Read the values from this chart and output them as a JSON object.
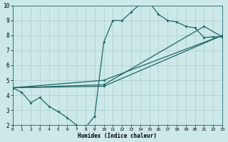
{
  "xlabel": "Humidex (Indice chaleur)",
  "xlim": [
    0,
    23
  ],
  "ylim": [
    2,
    10
  ],
  "xticks": [
    0,
    1,
    2,
    3,
    4,
    5,
    6,
    7,
    8,
    9,
    10,
    11,
    12,
    13,
    14,
    15,
    16,
    17,
    18,
    19,
    20,
    21,
    22,
    23
  ],
  "yticks": [
    2,
    3,
    4,
    5,
    6,
    7,
    8,
    9,
    10
  ],
  "background_color": "#cce8e8",
  "grid_color": "#aacece",
  "line_color": "#226666",
  "line1_x": [
    0,
    1,
    2,
    3,
    4,
    5,
    6,
    7,
    8,
    9,
    10,
    11,
    12,
    13,
    14,
    15,
    16,
    17,
    18,
    19,
    20,
    21,
    22,
    23
  ],
  "line1_y": [
    4.5,
    4.2,
    3.5,
    3.85,
    3.25,
    2.9,
    2.5,
    2.0,
    1.85,
    2.6,
    7.55,
    9.0,
    9.0,
    9.55,
    10.1,
    10.2,
    9.4,
    9.0,
    8.9,
    8.6,
    8.5,
    7.85,
    7.9,
    7.9
  ],
  "line2_x": [
    0,
    10,
    23
  ],
  "line2_y": [
    4.5,
    4.6,
    8.0
  ],
  "line3_x": [
    0,
    10,
    21,
    23
  ],
  "line3_y": [
    4.5,
    4.7,
    8.6,
    7.9
  ],
  "line4_x": [
    0,
    10,
    23
  ],
  "line4_y": [
    4.5,
    5.0,
    8.0
  ]
}
